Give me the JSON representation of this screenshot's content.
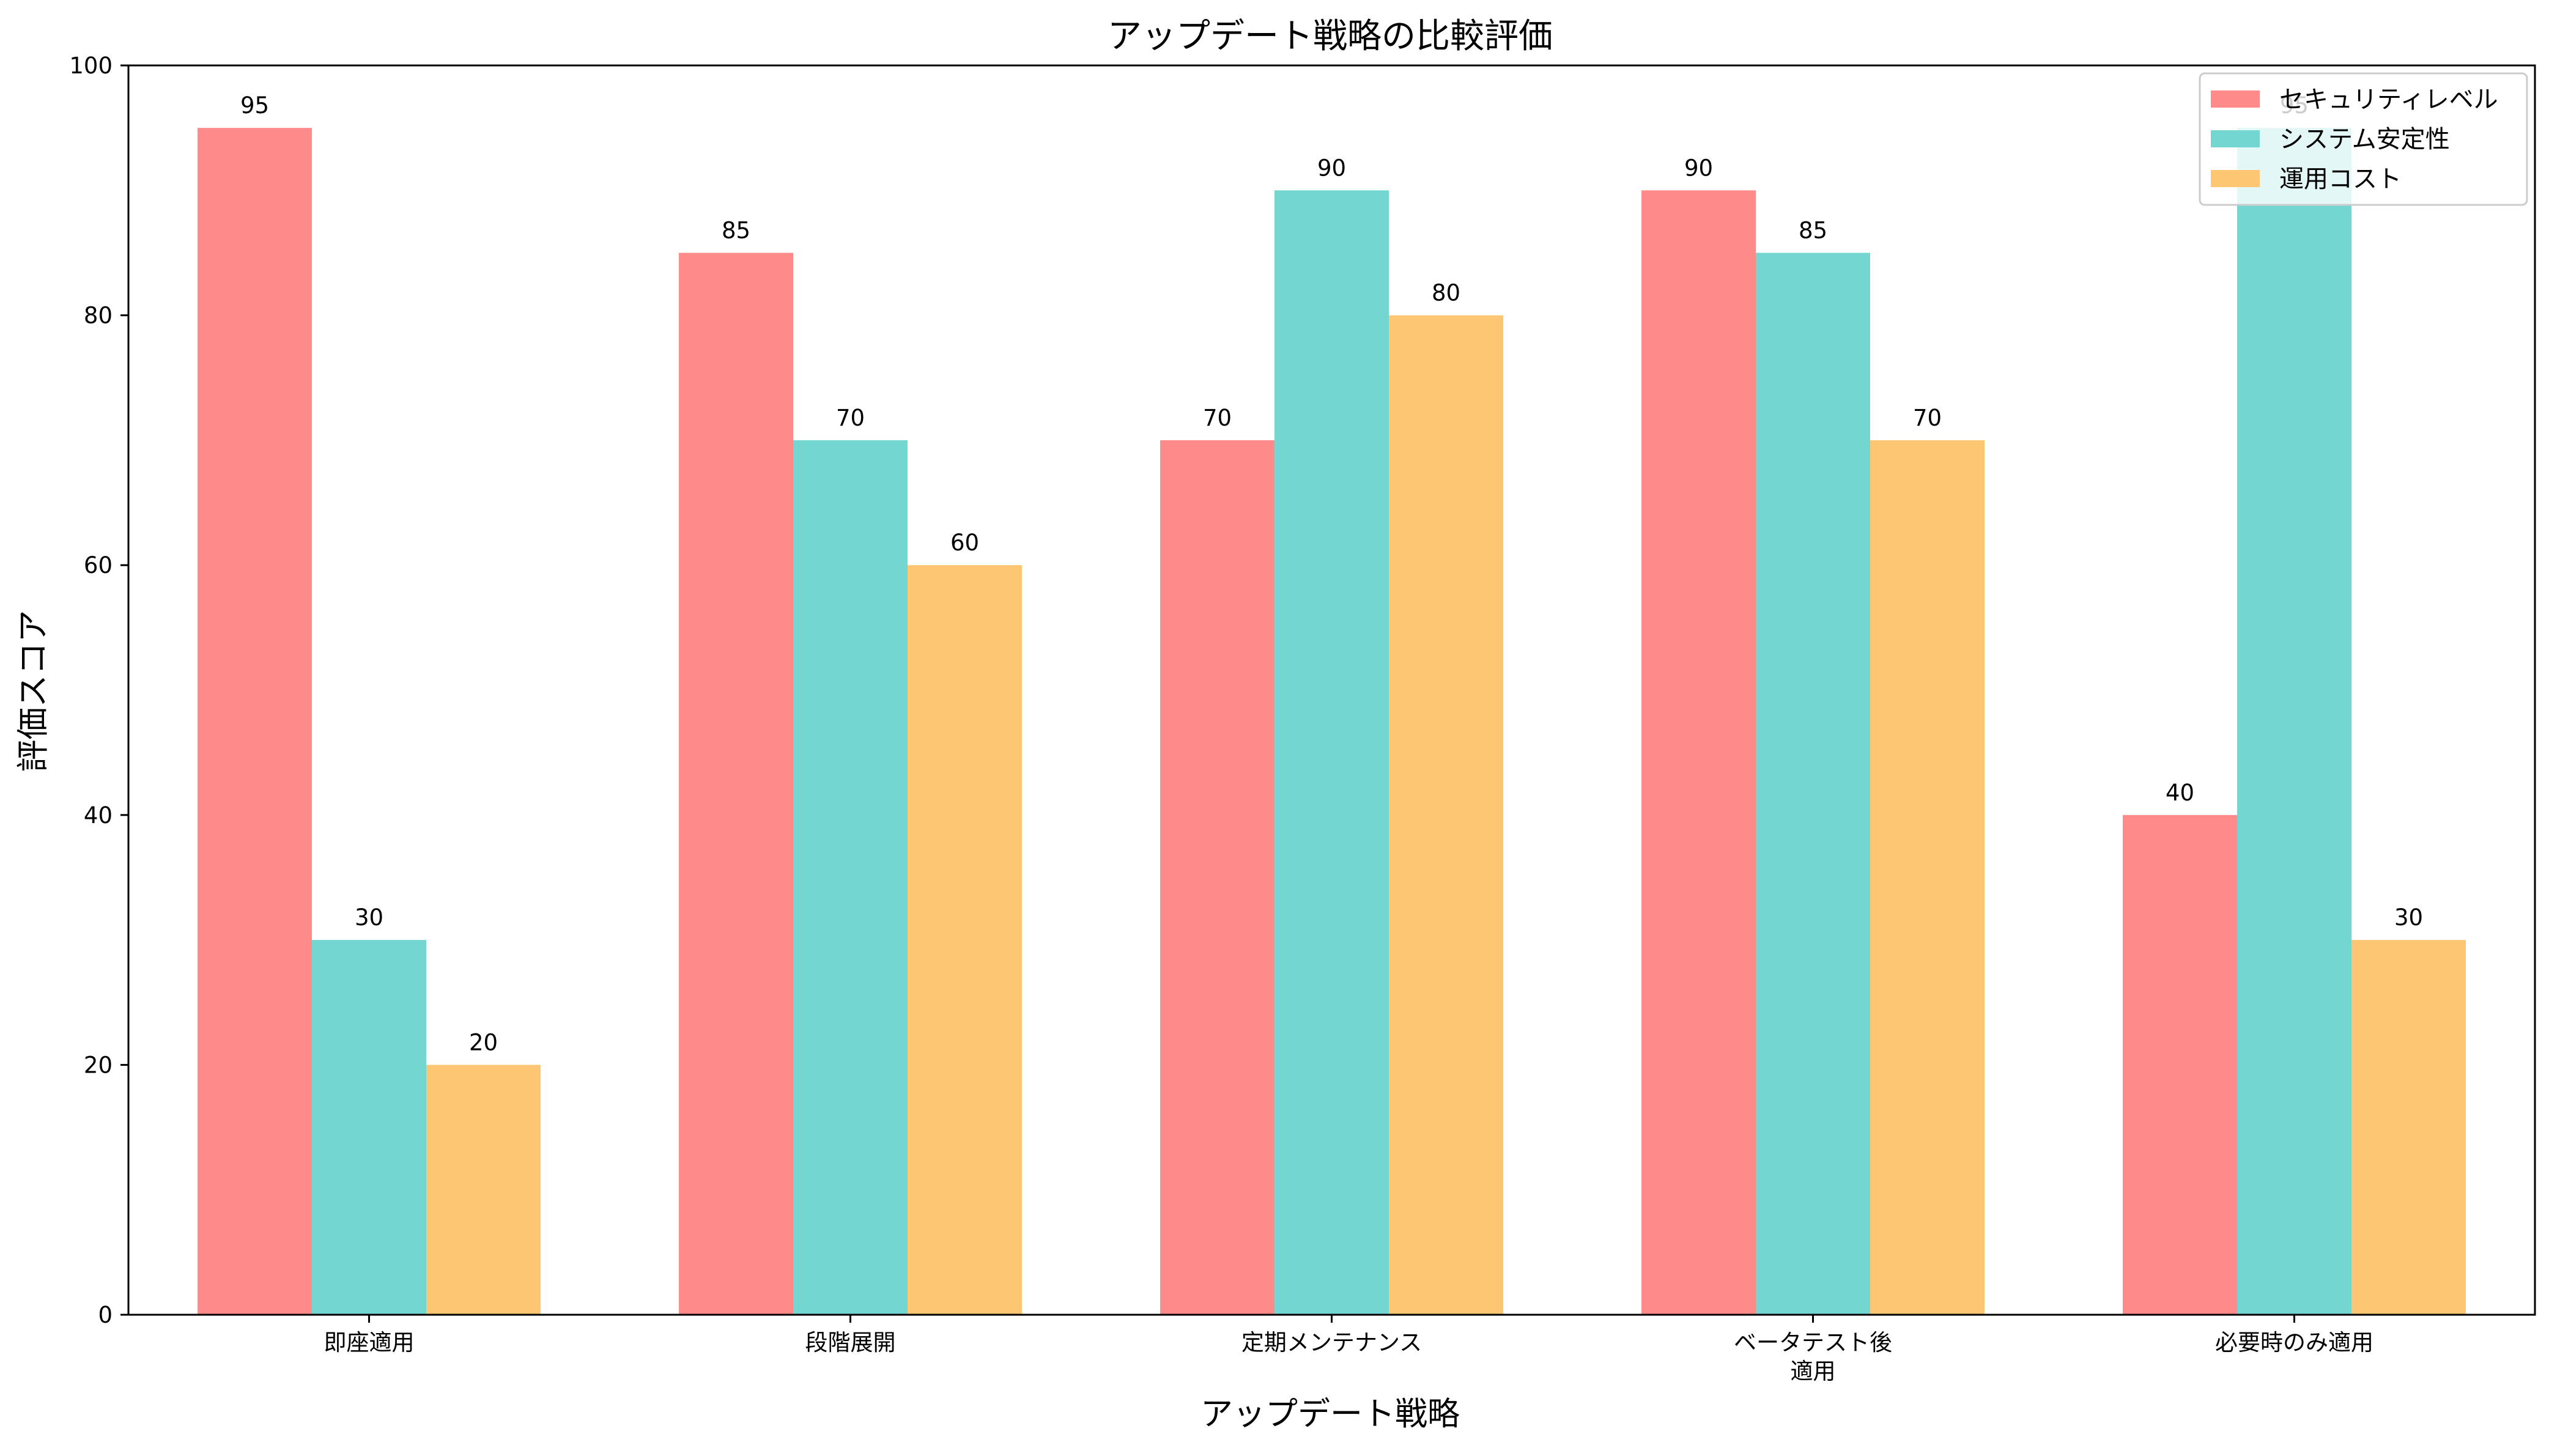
{
  "chart_data": {
    "type": "bar",
    "title": "アップデート戦略の比較評価",
    "xlabel": "アップデート戦略",
    "ylabel": "評価スコア",
    "categories": [
      "即座適用",
      "段階展開",
      "定期メンテナンス",
      "ベータテスト後\n適用",
      "必要時のみ適用"
    ],
    "series": [
      {
        "name": "セキュリティレベル",
        "color": "#FF8A8A",
        "values": [
          95,
          85,
          70,
          90,
          40
        ]
      },
      {
        "name": "システム安定性",
        "color": "#74D6D0",
        "values": [
          30,
          70,
          90,
          85,
          95
        ]
      },
      {
        "name": "運用コスト",
        "color": "#FDC672",
        "values": [
          20,
          60,
          80,
          70,
          30
        ]
      }
    ],
    "ylim": [
      0,
      100
    ],
    "yticks": [
      0,
      20,
      40,
      60,
      80,
      100
    ],
    "grid": false,
    "legend_position": "top-right",
    "data_labels": true
  }
}
